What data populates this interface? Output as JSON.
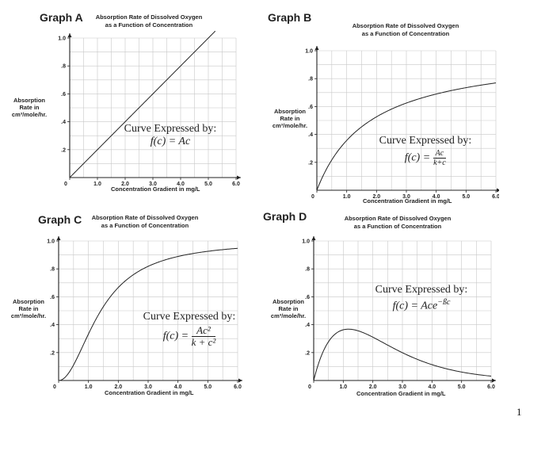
{
  "page_number": "1",
  "colors": {
    "grid": "#c8c8c8",
    "axis": "#222222",
    "curve": "#222222",
    "background": "#ffffff"
  },
  "chart_data": [
    {
      "id": "A",
      "graph_label": "Graph A",
      "type": "line",
      "title_line1": "Absorption Rate of Dissolved Oxygen",
      "title_line2": "as a Function of Concentration",
      "ylabel_lines": [
        "Absorption",
        "Rate in",
        "cm³/mole/hr."
      ],
      "xlabel": "Concentration Gradient in mg/L",
      "xlim": [
        0,
        6.0
      ],
      "ylim": [
        0,
        1.0
      ],
      "x_ticks": [
        "0",
        "1.0",
        "2.0",
        "3.0",
        "4.0",
        "5.0",
        "6.0"
      ],
      "y_ticks": [
        ".2",
        ".4",
        ".6",
        ".8",
        "1.0"
      ],
      "formula_caption": "Curve Expressed by:",
      "formula": "f(c) = Ac",
      "curve_function": "linear",
      "params": {
        "A": 0.2
      },
      "grid": true
    },
    {
      "id": "B",
      "graph_label": "Graph B",
      "type": "line",
      "title_line1": "Absorption Rate of Dissolved Oxygen",
      "title_line2": "as a Function of Concentration",
      "ylabel_lines": [
        "Absorption",
        "Rate in",
        "cm³/mole/hr."
      ],
      "xlabel": "Concentration Gradient in mg/L",
      "xlim": [
        0,
        6.0
      ],
      "ylim": [
        0,
        1.0
      ],
      "x_ticks": [
        "0",
        "1.0",
        "2.0",
        "3.0",
        "4.0",
        "5.0",
        "6.0"
      ],
      "y_ticks": [
        ".2",
        ".4",
        ".6",
        ".8",
        "1.0"
      ],
      "formula_caption": "Curve Expressed by:",
      "formula_lhs": "f(c) =",
      "formula_num": "Ac",
      "formula_den": "k+c",
      "curve_function": "saturation",
      "params": {
        "A": 1.0,
        "k": 1.8
      },
      "grid": true
    },
    {
      "id": "C",
      "graph_label": "Graph C",
      "type": "line",
      "title_line1": "Absorption Rate of Dissolved Oxygen",
      "title_line2": "as a Function of Concentration",
      "ylabel_lines": [
        "Absorption",
        "Rate in",
        "cm³/mole/hr."
      ],
      "xlabel": "Concentration Gradient in mg/L",
      "xlim": [
        0,
        6.0
      ],
      "ylim": [
        0,
        1.0
      ],
      "x_ticks": [
        "0",
        "1.0",
        "2.0",
        "3.0",
        "4.0",
        "5.0",
        "6.0"
      ],
      "y_ticks": [
        ".2",
        ".4",
        ".6",
        ".8",
        "1.0"
      ],
      "formula_caption": "Curve Expressed by:",
      "formula_lhs": "f(c) =",
      "formula_num": "Ac²",
      "formula_den": "k + c²",
      "curve_function": "sigmoid",
      "params": {
        "A": 1.0,
        "k": 2.0
      },
      "grid": true
    },
    {
      "id": "D",
      "graph_label": "Graph D",
      "type": "line",
      "title_line1": "Absorption Rate of Dissolved Oxygen",
      "title_line2": "as a Function of Concentration",
      "ylabel_lines": [
        "Absorption",
        "Rate in",
        "cm³/mole/hr."
      ],
      "xlabel": "Concentration Gradient in mg/L",
      "xlim": [
        0,
        6.0
      ],
      "ylim": [
        0,
        1.0
      ],
      "x_ticks": [
        "0",
        "1.0",
        "2.0",
        "3.0",
        "4.0",
        "5.0",
        "6.0"
      ],
      "y_ticks": [
        ".2",
        ".4",
        ".6",
        ".8",
        "1.0"
      ],
      "formula_caption": "Curve Expressed by:",
      "formula": "f(c) = Ace",
      "formula_exp": "−ßc",
      "curve_function": "decay",
      "params": {
        "A": 0.85,
        "B": 0.85
      },
      "grid": true
    }
  ]
}
